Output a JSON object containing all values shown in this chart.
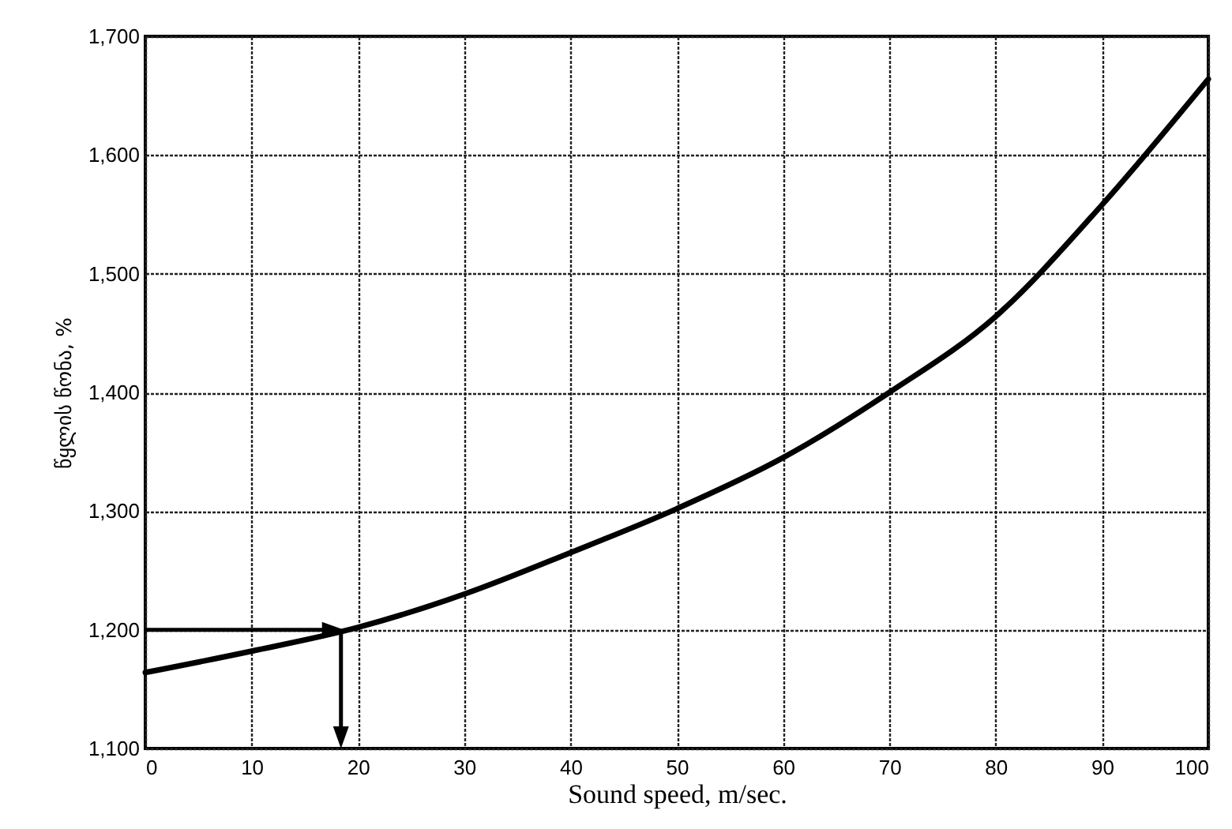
{
  "chart_data": {
    "type": "line",
    "xlabel": "Sound speed, m/sec.",
    "ylabel": "წყლის წონა, %",
    "x": [
      0,
      10,
      20,
      30,
      40,
      50,
      60,
      70,
      80,
      90,
      100
    ],
    "series": [
      {
        "color": "#000000",
        "values": [
          1164,
          1182,
          1202,
          1230,
          1265,
          1302,
          1345,
          1400,
          1464,
          1558,
          1664
        ]
      }
    ],
    "xlim": [
      0,
      100
    ],
    "xticks": [
      0,
      10,
      20,
      30,
      40,
      50,
      60,
      70,
      80,
      90,
      100
    ],
    "ylim": [
      1100,
      1700
    ],
    "yticks": [
      {
        "value": 1100,
        "label": "1,100"
      },
      {
        "value": 1200,
        "label": "1,200"
      },
      {
        "value": 1300,
        "label": "1,300"
      },
      {
        "value": 1400,
        "label": "1,400"
      },
      {
        "value": 1500,
        "label": "1,500"
      },
      {
        "value": 1600,
        "label": "1,600"
      },
      {
        "value": 1700,
        "label": "1,700"
      }
    ],
    "grid": true,
    "line_style": "solid",
    "marker": "none"
  }
}
